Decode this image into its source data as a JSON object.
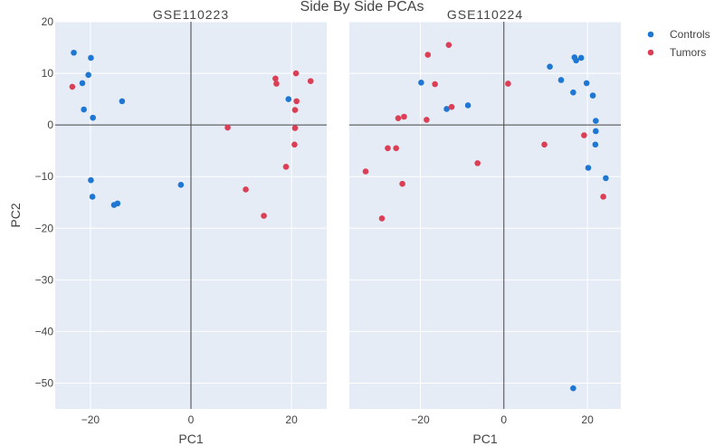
{
  "chart_data": {
    "type": "scatter",
    "title": "Side By Side PCAs",
    "xlabel": "PC1",
    "ylabel": "PC2",
    "ylim": [
      -55,
      20
    ],
    "yticks": [
      20,
      10,
      0,
      -10,
      -20,
      -30,
      -40,
      -50
    ],
    "legend": {
      "position": "top-right",
      "entries": [
        {
          "name": "Controls",
          "color": "#1f77d4"
        },
        {
          "name": "Tumors",
          "color": "#dc3f55"
        }
      ]
    },
    "panels": [
      {
        "title": "GSE110223",
        "xlim": [
          -27,
          27
        ],
        "xticks": [
          -20,
          0,
          20
        ],
        "series": [
          {
            "name": "Controls",
            "color": "#1f77d4",
            "points": [
              [
                -23.3,
                14.0
              ],
              [
                -19.9,
                13.0
              ],
              [
                -20.4,
                9.7
              ],
              [
                -21.6,
                8.1
              ],
              [
                -13.7,
                4.6
              ],
              [
                -21.3,
                3.0
              ],
              [
                -19.5,
                1.4
              ],
              [
                19.4,
                5.0
              ],
              [
                -19.9,
                -10.7
              ],
              [
                -19.6,
                -13.9
              ],
              [
                -15.3,
                -15.5
              ],
              [
                -14.6,
                -15.2
              ],
              [
                -2.0,
                -11.6
              ]
            ]
          },
          {
            "name": "Tumors",
            "color": "#dc3f55",
            "points": [
              [
                -23.6,
                7.4
              ],
              [
                20.9,
                10.0
              ],
              [
                16.8,
                9.0
              ],
              [
                17.0,
                8.0
              ],
              [
                23.8,
                8.5
              ],
              [
                21.0,
                4.6
              ],
              [
                20.7,
                2.9
              ],
              [
                7.3,
                -0.5
              ],
              [
                20.7,
                -0.6
              ],
              [
                20.6,
                -3.8
              ],
              [
                18.9,
                -8.1
              ],
              [
                10.9,
                -12.5
              ],
              [
                14.5,
                -17.6
              ]
            ]
          }
        ]
      },
      {
        "title": "GSE110224",
        "xlim": [
          -37,
          28
        ],
        "xticks": [
          -20,
          0,
          20
        ],
        "series": [
          {
            "name": "Controls",
            "color": "#1f77d4",
            "points": [
              [
                -19.8,
                8.2
              ],
              [
                11.0,
                11.3
              ],
              [
                13.7,
                8.7
              ],
              [
                16.9,
                13.1
              ],
              [
                17.3,
                12.5
              ],
              [
                18.5,
                13.0
              ],
              [
                19.8,
                8.1
              ],
              [
                21.3,
                5.7
              ],
              [
                16.6,
                6.3
              ],
              [
                22.0,
                0.8
              ],
              [
                22.0,
                -1.2
              ],
              [
                21.9,
                -3.8
              ],
              [
                20.2,
                -8.3
              ],
              [
                24.4,
                -10.3
              ],
              [
                -13.7,
                3.1
              ],
              [
                -8.6,
                3.8
              ],
              [
                16.6,
                -51.0
              ]
            ]
          },
          {
            "name": "Tumors",
            "color": "#dc3f55",
            "points": [
              [
                -13.2,
                15.5
              ],
              [
                -18.2,
                13.6
              ],
              [
                -16.5,
                7.9
              ],
              [
                1.0,
                8.0
              ],
              [
                -12.5,
                3.5
              ],
              [
                -25.3,
                1.3
              ],
              [
                -23.9,
                1.6
              ],
              [
                -18.5,
                1.0
              ],
              [
                -27.8,
                -4.5
              ],
              [
                -25.8,
                -4.5
              ],
              [
                9.7,
                -3.8
              ],
              [
                19.2,
                -2.0
              ],
              [
                -6.3,
                -7.4
              ],
              [
                -33.1,
                -9.0
              ],
              [
                -24.3,
                -11.4
              ],
              [
                -29.2,
                -18.1
              ],
              [
                23.8,
                -13.9
              ]
            ]
          }
        ]
      }
    ]
  }
}
